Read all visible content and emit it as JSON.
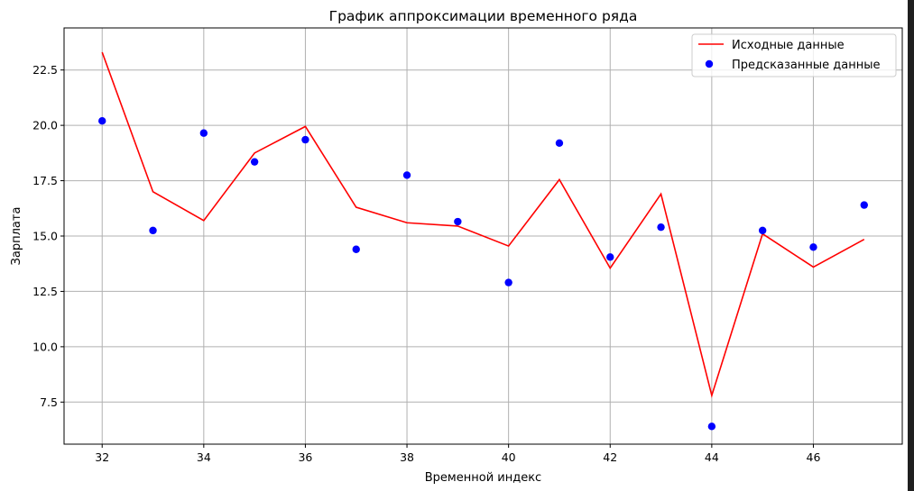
{
  "chart_data": {
    "type": "line",
    "title": "График аппроксимации временного ряда",
    "xlabel": "Временной индекс",
    "ylabel": "Зарплата",
    "xlim": [
      31.25,
      47.75
    ],
    "ylim": [
      5.6,
      24.4
    ],
    "xticks": [
      32,
      34,
      36,
      38,
      40,
      42,
      44,
      46
    ],
    "xtick_labels": [
      "32",
      "34",
      "36",
      "38",
      "40",
      "42",
      "44",
      "46"
    ],
    "yticks": [
      7.5,
      10.0,
      12.5,
      15.0,
      17.5,
      20.0,
      22.5
    ],
    "ytick_labels": [
      "7.5",
      "10.0",
      "12.5",
      "15.0",
      "17.5",
      "20.0",
      "22.5"
    ],
    "grid": true,
    "legend_position": "top-right",
    "x": [
      32,
      33,
      34,
      35,
      36,
      37,
      38,
      39,
      40,
      41,
      42,
      43,
      44,
      45,
      46,
      47
    ],
    "series": [
      {
        "name": "Исходные данные",
        "kind": "line",
        "color": "#ff0000",
        "values": [
          23.3,
          17.0,
          15.7,
          18.75,
          19.95,
          16.3,
          15.6,
          15.45,
          14.55,
          17.55,
          13.55,
          16.9,
          7.8,
          15.1,
          13.6,
          14.85
        ]
      },
      {
        "name": "Предсказанные данные",
        "kind": "scatter",
        "color": "#0000ff",
        "values": [
          20.2,
          15.25,
          19.65,
          18.35,
          19.35,
          14.4,
          17.75,
          15.65,
          12.9,
          19.2,
          14.05,
          15.4,
          6.4,
          15.25,
          14.5,
          16.4
        ]
      }
    ]
  }
}
